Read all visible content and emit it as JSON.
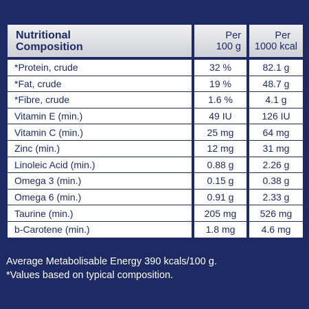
{
  "table": {
    "header": {
      "label_line1": "Nutritional",
      "label_line2": "Composition",
      "col1_line1": "Per",
      "col1_line2": "100 g",
      "col2_line1": "Per",
      "col2_line2": "1000 kcal"
    },
    "rows": [
      {
        "name": "*Protein, crude",
        "per100g": "32 %",
        "per1000kcal": "82.1 g"
      },
      {
        "name": "*Fat, crude",
        "per100g": "19 %",
        "per1000kcal": "48.7 g"
      },
      {
        "name": "*Fibre, crude",
        "per100g": "1.6 %",
        "per1000kcal": "4.1 g"
      },
      {
        "name": "Vitamin E (min.)",
        "per100g": "49 IU",
        "per1000kcal": "126 IU"
      },
      {
        "name": "Vitamin C (min.)",
        "per100g": "25 mg",
        "per1000kcal": "64 mg"
      },
      {
        "name": "Zinc (min.)",
        "per100g": "12 mg",
        "per1000kcal": "31 mg"
      },
      {
        "name": "Linoleic Acid (min.)",
        "per100g": "0.88 g",
        "per1000kcal": "2.26 g"
      },
      {
        "name": "Omega 3 (min.)",
        "per100g": "0.15 g",
        "per1000kcal": "0.38 g"
      },
      {
        "name": "Omega 6 (min.)",
        "per100g": "0.91 g",
        "per1000kcal": "2.33 g"
      },
      {
        "name": "Taurine (min.)",
        "per100g": "205 mg",
        "per1000kcal": "526 mg"
      },
      {
        "name": "b-Carotene (min.)",
        "per100g": "1.8 mg",
        "per1000kcal": "4.6 mg"
      }
    ]
  },
  "footer": {
    "energy": "Average Metabolisable Energy 390 kcals/100 g.",
    "note": "*Values based on typical composition."
  },
  "colors": {
    "background": "#1d2a63",
    "text": "#1d2a63",
    "header_bg": "#dcdde1",
    "cell_bg": "#ffffff"
  }
}
